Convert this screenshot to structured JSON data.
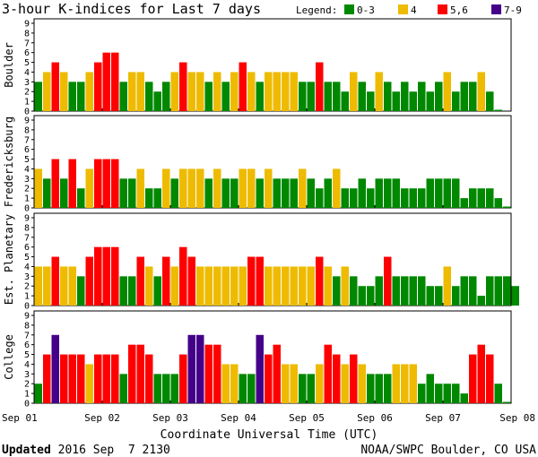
{
  "chart_data": {
    "type": "bar",
    "title": "3-hour K-indices for Last 7 days",
    "legend_label": "Legend:",
    "legend": [
      {
        "label": "0-3",
        "color": "#008800"
      },
      {
        "label": "4",
        "color": "#eebb00"
      },
      {
        "label": "5,6",
        "color": "#ff0000"
      },
      {
        "label": "7-9",
        "color": "#440088"
      }
    ],
    "ylim": [
      0,
      9
    ],
    "yticks": [
      "0",
      "1",
      "2",
      "3",
      "4",
      "5",
      "6",
      "7",
      "8",
      "9"
    ],
    "xlabel": "Coordinate Universal Time (UTC)",
    "x_ticks": [
      "Sep 01",
      "Sep 02",
      "Sep 03",
      "Sep 04",
      "Sep 05",
      "Sep 06",
      "Sep 07",
      "Sep 08"
    ],
    "panels": [
      {
        "name": "Boulder",
        "values": [
          3,
          4,
          5,
          4,
          3,
          3,
          4,
          5,
          6,
          6,
          3,
          4,
          4,
          3,
          2,
          3,
          4,
          5,
          4,
          4,
          3,
          4,
          3,
          4,
          5,
          4,
          3,
          4,
          4,
          4,
          4,
          3,
          3,
          5,
          3,
          3,
          2,
          4,
          3,
          2,
          4,
          3,
          2,
          3,
          2,
          3,
          2,
          3,
          4,
          2,
          3,
          3,
          4,
          2,
          0
        ]
      },
      {
        "name": "Fredericksburg",
        "values": [
          4,
          3,
          5,
          3,
          5,
          2,
          4,
          5,
          5,
          5,
          3,
          3,
          4,
          2,
          2,
          4,
          3,
          4,
          4,
          4,
          3,
          4,
          3,
          3,
          4,
          4,
          3,
          4,
          3,
          3,
          3,
          4,
          3,
          2,
          3,
          4,
          2,
          2,
          3,
          2,
          3,
          3,
          3,
          2,
          2,
          2,
          3,
          3,
          3,
          3,
          1,
          2,
          2,
          2,
          1,
          0
        ]
      },
      {
        "name": "Est. Planetary",
        "values": [
          4,
          4,
          5,
          4,
          4,
          3,
          5,
          6,
          6,
          6,
          3,
          3,
          5,
          4,
          3,
          5,
          4,
          6,
          5,
          4,
          4,
          4,
          4,
          4,
          4,
          5,
          5,
          4,
          4,
          4,
          4,
          4,
          4,
          5,
          4,
          3,
          4,
          3,
          2,
          2,
          3,
          5,
          3,
          3,
          3,
          3,
          2,
          2,
          4,
          2,
          3,
          3,
          1,
          3,
          3,
          3,
          2
        ]
      },
      {
        "name": "College",
        "values": [
          2,
          5,
          7,
          5,
          5,
          5,
          4,
          5,
          5,
          5,
          3,
          6,
          6,
          5,
          3,
          3,
          3,
          5,
          7,
          7,
          6,
          6,
          4,
          4,
          3,
          3,
          7,
          5,
          6,
          4,
          4,
          3,
          3,
          4,
          6,
          5,
          4,
          5,
          4,
          3,
          3,
          3,
          4,
          4,
          4,
          2,
          3,
          2,
          2,
          2,
          1,
          5,
          6,
          5,
          2,
          0
        ]
      }
    ]
  },
  "footer": {
    "updated_label": "Updated",
    "updated_value": " 2016 Sep  7 2130",
    "credit": "NOAA/SWPC Boulder, CO USA"
  }
}
